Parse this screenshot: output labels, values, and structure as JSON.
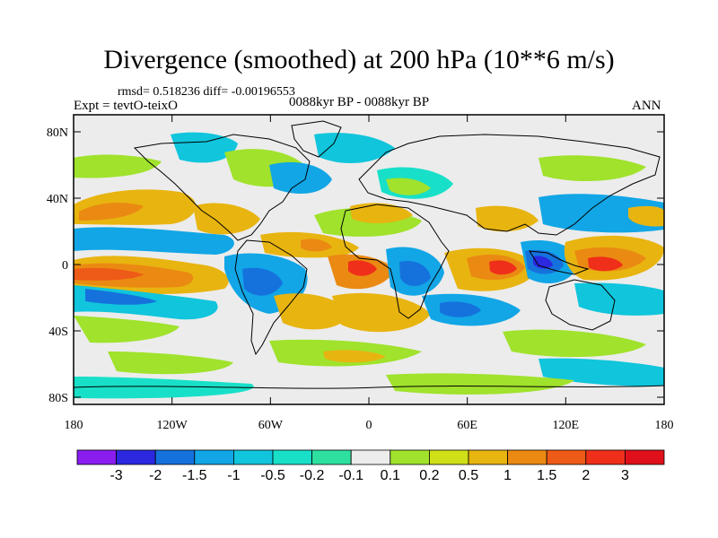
{
  "header": {
    "title": "Divergence (smoothed) at 200 hPa (10**6 m/s)",
    "stats": "rmsd= 0.518236 diff= -0.00196553",
    "experiment": "Expt = tevtO-teixO",
    "period": "0088kyr BP - 0088kyr BP",
    "season": "ANN"
  },
  "map": {
    "projection": "cylindrical equidistant",
    "field": "200 hPa divergence difference",
    "lat_ticks": [
      "80N",
      "40N",
      "0",
      "40S",
      "80S"
    ],
    "lon_ticks": [
      "180",
      "120W",
      "60W",
      "0",
      "60E",
      "120E",
      "180"
    ]
  },
  "colorbar": {
    "labels": [
      "-3",
      "-2",
      "-1.5",
      "-1",
      "-0.5",
      "-0.2",
      "-0.1",
      "0.1",
      "0.2",
      "0.5",
      "1",
      "1.5",
      "2",
      "3"
    ],
    "colors": [
      "#8a1cf0",
      "#2b28e0",
      "#1572dd",
      "#12a6e6",
      "#10c5dc",
      "#18e0c8",
      "#2ee0a0",
      "#ececec",
      "#a0e22c",
      "#d0e018",
      "#e8b410",
      "#ea8a12",
      "#ee5a18",
      "#ef2f1a",
      "#e0101a"
    ]
  }
}
